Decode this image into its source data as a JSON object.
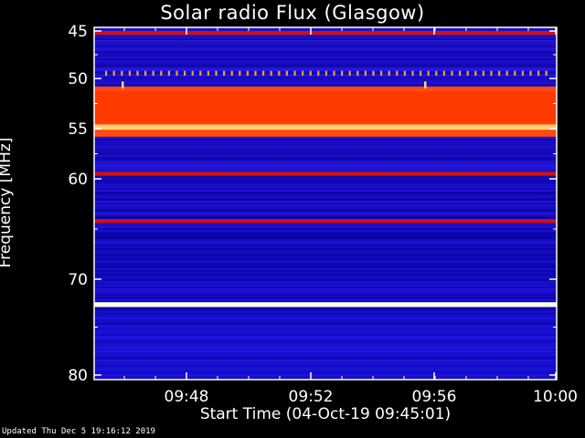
{
  "chart_data": {
    "type": "heatmap",
    "title": "Solar radio Flux (Glasgow)",
    "ylabel": "Frequency [MHz]",
    "xlabel": "Start Time (04-Oct-19 09:45:01)",
    "y_ticks": [
      "45",
      "50",
      "55",
      "60",
      "70",
      "80"
    ],
    "x_ticks": [
      "09:48",
      "09:52",
      "09:56",
      "10:00"
    ],
    "ylim": [
      45,
      80
    ],
    "xlim": [
      "09:45:01",
      "10:00"
    ],
    "colors": {
      "low": "#0000b0",
      "mid": "#d01010",
      "high": "#ffffe0"
    },
    "bands_mhz": [
      {
        "lo": 45.0,
        "hi": 45.4,
        "level": "mid"
      },
      {
        "lo": 49.2,
        "hi": 49.7,
        "level": "spikes"
      },
      {
        "lo": 50.8,
        "hi": 55.8,
        "level": "mid-high"
      },
      {
        "lo": 54.6,
        "hi": 55.1,
        "level": "high"
      },
      {
        "lo": 59.3,
        "hi": 59.7,
        "level": "mid"
      },
      {
        "lo": 64.0,
        "hi": 64.4,
        "level": "mid"
      },
      {
        "lo": 72.4,
        "hi": 72.9,
        "level": "high"
      }
    ]
  },
  "footer": {
    "updated": "Updated Thu Dec  5 19:16:12 2019"
  }
}
